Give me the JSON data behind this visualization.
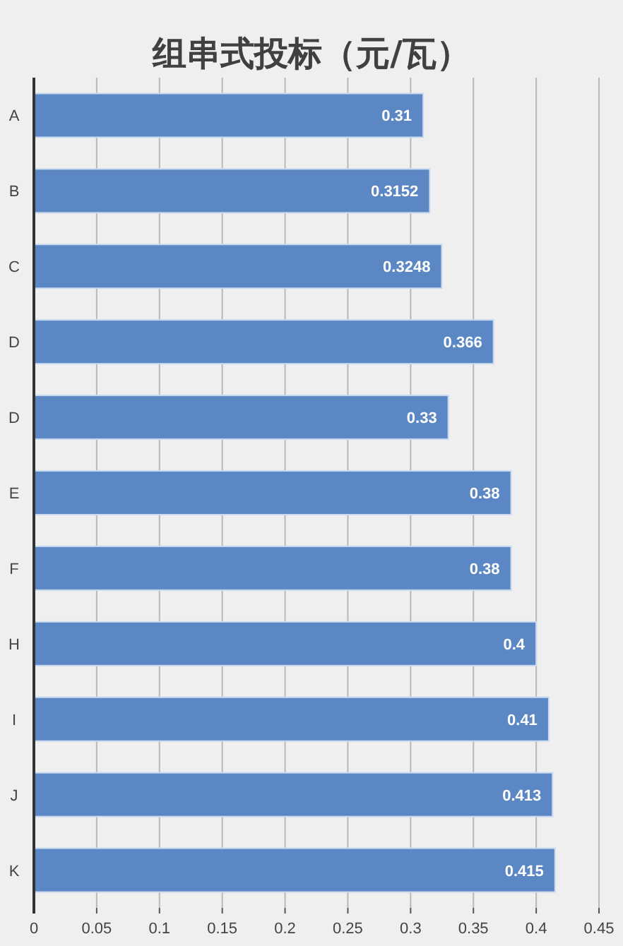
{
  "chart_data": {
    "type": "bar",
    "title": "组串式投标（元/瓦）",
    "categories": [
      "A",
      "B",
      "C",
      "D",
      "D",
      "E",
      "F",
      "H",
      "I",
      "J",
      "K"
    ],
    "values": [
      0.31,
      0.3152,
      0.3248,
      0.366,
      0.33,
      0.38,
      0.38,
      0.4,
      0.41,
      0.413,
      0.415
    ],
    "color": "#5b87c4",
    "orientation": "horizontal",
    "xlim": [
      0,
      0.45
    ],
    "xticks": [
      0,
      0.05,
      0.1,
      0.15,
      0.2,
      0.25,
      0.3,
      0.35,
      0.4,
      0.45
    ],
    "grid": "x",
    "data_labels": true
  }
}
